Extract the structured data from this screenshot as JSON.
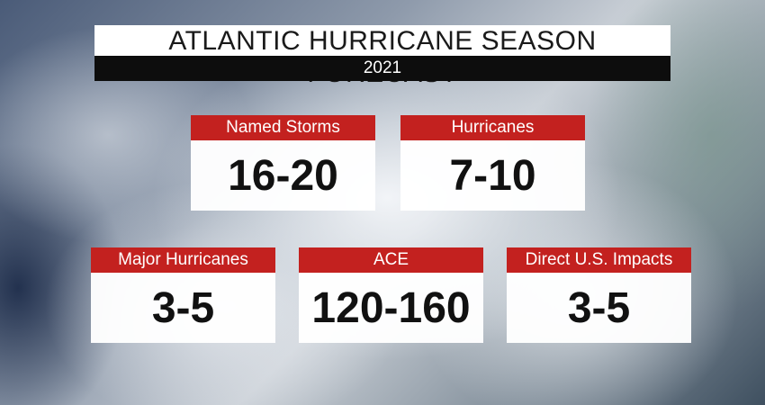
{
  "header": {
    "title": "ATLANTIC HURRICANE SEASON FORECAST",
    "subtitle": "2021"
  },
  "cards": [
    {
      "label": "Named Storms",
      "value": "16-20"
    },
    {
      "label": "Hurricanes",
      "value": "7-10"
    },
    {
      "label": "Major Hurricanes",
      "value": "3-5"
    },
    {
      "label": "ACE",
      "value": "120-160"
    },
    {
      "label": "Direct U.S. Impacts",
      "value": "3-5"
    }
  ]
}
